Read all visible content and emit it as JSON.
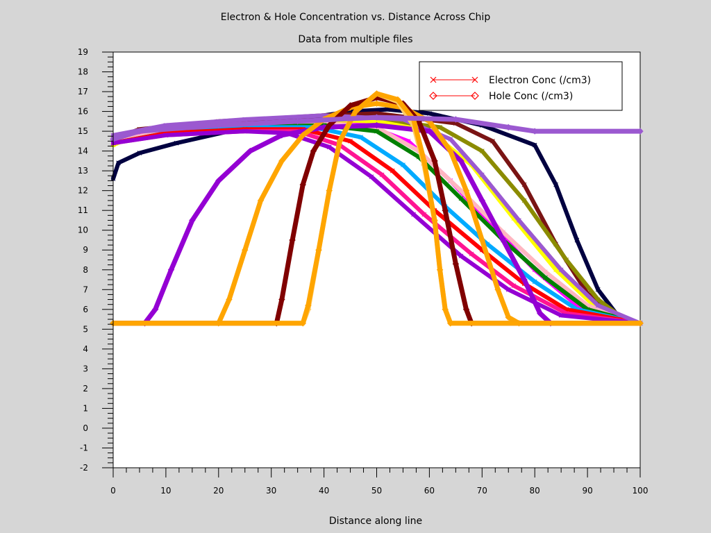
{
  "chart_data": {
    "type": "line",
    "title": "Electron & Hole Concentration vs. Distance Across Chip",
    "subtitle": "Data from multiple files",
    "xlabel": "Distance along line",
    "ylabel": "",
    "xlim": [
      0,
      100
    ],
    "ylim": [
      -2,
      19
    ],
    "x_ticks": [
      0,
      10,
      20,
      30,
      40,
      50,
      60,
      70,
      80,
      90,
      100
    ],
    "y_ticks": [
      -2,
      -1,
      0,
      1,
      2,
      3,
      4,
      5,
      6,
      7,
      8,
      9,
      10,
      11,
      12,
      13,
      14,
      15,
      16,
      17,
      18,
      19
    ],
    "grid": false,
    "legend_position": "top-right",
    "legend": [
      {
        "label": "Electron Conc (/cm3)",
        "marker": "x",
        "color": "#ff0000"
      },
      {
        "label": "Hole Conc (/cm3)",
        "marker": "diamond",
        "color": "#ff0000"
      }
    ],
    "series": [
      {
        "kind": "electron",
        "color": "#000040",
        "points": [
          [
            0,
            12.6
          ],
          [
            1,
            13.4
          ],
          [
            5,
            13.9
          ],
          [
            12,
            14.4
          ],
          [
            22,
            15.0
          ],
          [
            35,
            15.6
          ],
          [
            45,
            16.0
          ],
          [
            52,
            16.1
          ],
          [
            60,
            15.9
          ],
          [
            70,
            15.3
          ],
          [
            80,
            14.3
          ],
          [
            84,
            12.3
          ],
          [
            88,
            9.5
          ],
          [
            92,
            7.0
          ],
          [
            96,
            5.6
          ],
          [
            100,
            5.3
          ]
        ]
      },
      {
        "kind": "electron",
        "color": "#7a1414",
        "points": [
          [
            0,
            14.6
          ],
          [
            5,
            15.1
          ],
          [
            20,
            15.5
          ],
          [
            40,
            15.8
          ],
          [
            50,
            15.9
          ],
          [
            65,
            15.4
          ],
          [
            72,
            14.5
          ],
          [
            78,
            12.3
          ],
          [
            84,
            9.3
          ],
          [
            90,
            6.8
          ],
          [
            96,
            5.6
          ],
          [
            100,
            5.3
          ]
        ]
      },
      {
        "kind": "electron",
        "color": "#8b8b00",
        "points": [
          [
            0,
            14.7
          ],
          [
            5,
            15.0
          ],
          [
            20,
            15.3
          ],
          [
            35,
            15.5
          ],
          [
            50,
            15.6
          ],
          [
            62,
            15.2
          ],
          [
            70,
            14.0
          ],
          [
            78,
            11.5
          ],
          [
            86,
            8.5
          ],
          [
            92,
            6.5
          ],
          [
            97,
            5.5
          ],
          [
            100,
            5.3
          ]
        ]
      },
      {
        "kind": "electron",
        "color": "#ffff00",
        "points": [
          [
            0,
            14.3
          ],
          [
            5,
            14.9
          ],
          [
            20,
            15.3
          ],
          [
            35,
            15.5
          ],
          [
            50,
            15.5
          ],
          [
            60,
            15.0
          ],
          [
            68,
            13.3
          ],
          [
            76,
            10.6
          ],
          [
            84,
            8.0
          ],
          [
            92,
            6.0
          ],
          [
            100,
            5.3
          ]
        ]
      },
      {
        "kind": "electron",
        "color": "#ff00ff",
        "points": [
          [
            0,
            14.5
          ],
          [
            5,
            14.9
          ],
          [
            20,
            15.2
          ],
          [
            35,
            15.4
          ],
          [
            48,
            15.3
          ],
          [
            56,
            14.5
          ],
          [
            64,
            12.5
          ],
          [
            72,
            10.2
          ],
          [
            80,
            8.0
          ],
          [
            88,
            6.2
          ],
          [
            95,
            5.5
          ],
          [
            100,
            5.3
          ]
        ]
      },
      {
        "kind": "electron",
        "color": "#ffb6c1",
        "points": [
          [
            0,
            14.5
          ],
          [
            10,
            15.0
          ],
          [
            25,
            15.3
          ],
          [
            40,
            15.4
          ],
          [
            50,
            15.2
          ],
          [
            58,
            14.0
          ],
          [
            66,
            12.0
          ],
          [
            74,
            9.9
          ],
          [
            82,
            7.9
          ],
          [
            90,
            6.2
          ],
          [
            100,
            5.3
          ]
        ]
      },
      {
        "kind": "electron",
        "color": "#008000",
        "points": [
          [
            0,
            14.4
          ],
          [
            10,
            14.9
          ],
          [
            25,
            15.2
          ],
          [
            40,
            15.3
          ],
          [
            50,
            15.0
          ],
          [
            58,
            13.7
          ],
          [
            66,
            11.6
          ],
          [
            74,
            9.5
          ],
          [
            82,
            7.6
          ],
          [
            90,
            6.0
          ],
          [
            100,
            5.3
          ]
        ]
      },
      {
        "kind": "electron",
        "color": "#00aaff",
        "points": [
          [
            0,
            14.4
          ],
          [
            10,
            14.9
          ],
          [
            25,
            15.2
          ],
          [
            38,
            15.2
          ],
          [
            47,
            14.7
          ],
          [
            55,
            13.3
          ],
          [
            63,
            11.2
          ],
          [
            71,
            9.3
          ],
          [
            80,
            7.4
          ],
          [
            88,
            6.0
          ],
          [
            100,
            5.3
          ]
        ]
      },
      {
        "kind": "electron",
        "color": "#ff0000",
        "points": [
          [
            0,
            14.4
          ],
          [
            10,
            14.9
          ],
          [
            25,
            15.1
          ],
          [
            36,
            15.1
          ],
          [
            45,
            14.5
          ],
          [
            53,
            13.0
          ],
          [
            61,
            11.0
          ],
          [
            70,
            9.0
          ],
          [
            78,
            7.3
          ],
          [
            86,
            6.0
          ],
          [
            100,
            5.3
          ]
        ]
      },
      {
        "kind": "electron",
        "color": "#ff1493",
        "points": [
          [
            0,
            14.4
          ],
          [
            10,
            14.8
          ],
          [
            25,
            15.0
          ],
          [
            35,
            15.0
          ],
          [
            43,
            14.3
          ],
          [
            51,
            12.8
          ],
          [
            59,
            10.8
          ],
          [
            68,
            8.8
          ],
          [
            76,
            7.2
          ],
          [
            86,
            5.8
          ],
          [
            100,
            5.3
          ]
        ]
      },
      {
        "kind": "electron",
        "color": "#9400d3",
        "points": [
          [
            0,
            14.4
          ],
          [
            10,
            14.8
          ],
          [
            25,
            15.0
          ],
          [
            33,
            14.9
          ],
          [
            41,
            14.2
          ],
          [
            49,
            12.7
          ],
          [
            57,
            10.8
          ],
          [
            66,
            8.7
          ],
          [
            75,
            7.0
          ],
          [
            85,
            5.7
          ],
          [
            100,
            5.3
          ]
        ]
      },
      {
        "kind": "electron",
        "color": "#9b59d0",
        "points": [
          [
            0,
            14.8
          ],
          [
            10,
            15.3
          ],
          [
            25,
            15.6
          ],
          [
            40,
            15.8
          ],
          [
            55,
            15.6
          ],
          [
            64,
            14.6
          ],
          [
            70,
            12.8
          ],
          [
            77,
            10.5
          ],
          [
            85,
            8.0
          ],
          [
            92,
            6.2
          ],
          [
            100,
            5.3
          ]
        ]
      },
      {
        "kind": "hole",
        "color": "#9400d3",
        "points": [
          [
            0,
            5.3
          ],
          [
            6,
            5.3
          ],
          [
            8,
            6.0
          ],
          [
            11,
            8.0
          ],
          [
            15,
            10.5
          ],
          [
            20,
            12.5
          ],
          [
            26,
            14.0
          ],
          [
            32,
            14.8
          ],
          [
            40,
            15.2
          ],
          [
            50,
            15.3
          ],
          [
            60,
            15.0
          ],
          [
            66,
            13.5
          ],
          [
            70,
            11.5
          ],
          [
            74,
            9.5
          ],
          [
            78,
            7.5
          ],
          [
            81,
            5.8
          ],
          [
            83,
            5.3
          ],
          [
            100,
            5.3
          ]
        ]
      },
      {
        "kind": "hole",
        "color": "#ffa500",
        "points": [
          [
            0,
            5.3
          ],
          [
            20,
            5.3
          ],
          [
            22,
            6.5
          ],
          [
            25,
            9.0
          ],
          [
            28,
            11.5
          ],
          [
            32,
            13.5
          ],
          [
            36,
            14.8
          ],
          [
            40,
            15.6
          ],
          [
            45,
            16.2
          ],
          [
            50,
            16.4
          ],
          [
            55,
            16.2
          ],
          [
            60,
            15.5
          ],
          [
            64,
            14.0
          ],
          [
            67,
            12.0
          ],
          [
            70,
            9.5
          ],
          [
            73,
            7.0
          ],
          [
            75,
            5.6
          ],
          [
            77,
            5.3
          ],
          [
            100,
            5.3
          ]
        ]
      },
      {
        "kind": "hole",
        "color": "#800000",
        "points": [
          [
            0,
            5.3
          ],
          [
            31,
            5.3
          ],
          [
            32,
            6.5
          ],
          [
            34,
            9.5
          ],
          [
            36,
            12.3
          ],
          [
            38,
            14.0
          ],
          [
            41,
            15.3
          ],
          [
            45,
            16.3
          ],
          [
            50,
            16.7
          ],
          [
            55,
            16.4
          ],
          [
            58,
            15.5
          ],
          [
            61,
            13.5
          ],
          [
            63,
            11.0
          ],
          [
            65,
            8.3
          ],
          [
            67,
            6.0
          ],
          [
            68,
            5.3
          ],
          [
            100,
            5.3
          ]
        ]
      },
      {
        "kind": "hole",
        "color": "#ffcc66",
        "points": [
          [
            0,
            5.3
          ],
          [
            36,
            5.3
          ],
          [
            37,
            6.0
          ],
          [
            39,
            9.0
          ],
          [
            41,
            12.0
          ],
          [
            43,
            14.5
          ],
          [
            46,
            16.0
          ],
          [
            50,
            16.9
          ],
          [
            54,
            16.5
          ],
          [
            57,
            15.3
          ],
          [
            59,
            13.3
          ],
          [
            61,
            10.5
          ],
          [
            62,
            8.0
          ],
          [
            63,
            6.0
          ],
          [
            64,
            5.3
          ],
          [
            100,
            5.3
          ]
        ]
      },
      {
        "kind": "hole",
        "color": "#ffa500",
        "points": [
          [
            0,
            5.3
          ],
          [
            36,
            5.3
          ],
          [
            37,
            6.2
          ],
          [
            39,
            9.0
          ],
          [
            41,
            12.0
          ],
          [
            43,
            14.5
          ],
          [
            46,
            16.0
          ],
          [
            50,
            16.9
          ],
          [
            54,
            16.6
          ],
          [
            57,
            15.6
          ],
          [
            59,
            13.5
          ],
          [
            61,
            10.5
          ],
          [
            62,
            8.0
          ],
          [
            63,
            6.0
          ],
          [
            64,
            5.3
          ],
          [
            100,
            5.3
          ]
        ]
      },
      {
        "kind": "hole",
        "color": "#9b59d0",
        "points": [
          [
            0,
            14.6
          ],
          [
            5,
            15.0
          ],
          [
            20,
            15.3
          ],
          [
            35,
            15.5
          ],
          [
            50,
            15.7
          ],
          [
            65,
            15.6
          ],
          [
            75,
            15.2
          ],
          [
            80,
            15.0
          ],
          [
            100,
            15.0
          ]
        ]
      }
    ]
  }
}
